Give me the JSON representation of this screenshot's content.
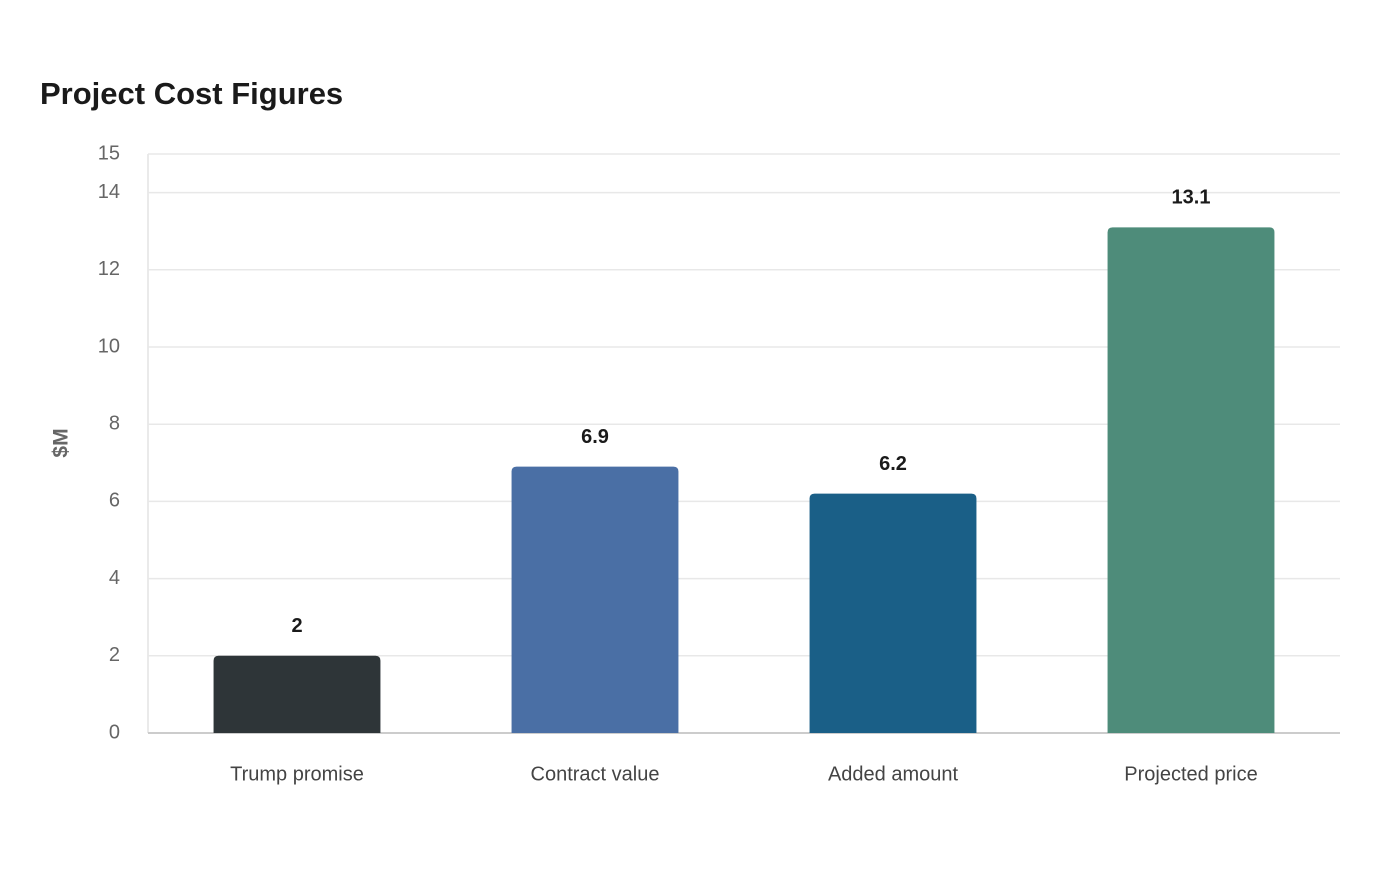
{
  "chart_data": {
    "type": "bar",
    "title": "Project Cost Figures",
    "y_label": "$M",
    "categories": [
      "Trump promise",
      "Contract value",
      "Added amount",
      "Projected price"
    ],
    "values": [
      2,
      6.9,
      6.2,
      13.1
    ],
    "colors": [
      "#2e3538",
      "#4a6fa5",
      "#1a5f87",
      "#4e8c7a"
    ],
    "ylim": [
      0,
      15
    ],
    "yticks": [
      0,
      2,
      4,
      6,
      8,
      10,
      12,
      14,
      15
    ],
    "grid": true
  }
}
